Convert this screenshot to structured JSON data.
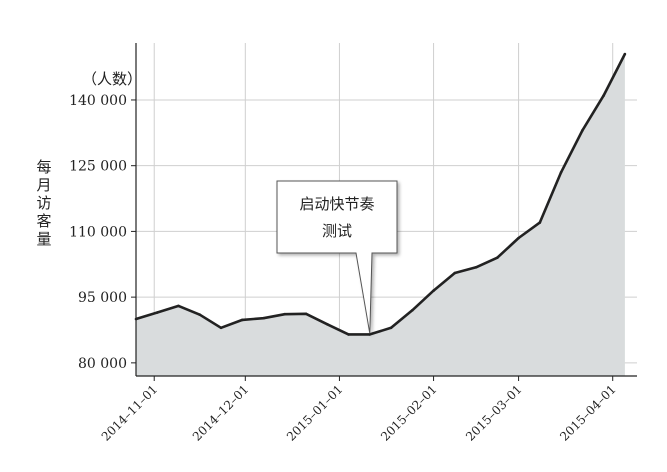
{
  "chart_data": {
    "type": "area",
    "unit_label": "（人数）",
    "ylabel": "每月访客量",
    "y_ticks": [
      80000,
      95000,
      110000,
      125000,
      140000
    ],
    "y_tick_labels": [
      "80 000",
      "95 000",
      "110 000",
      "125 000",
      "140 000"
    ],
    "ylim": [
      77000,
      153000
    ],
    "xlim": [
      "2014-10-26",
      "2015-04-09"
    ],
    "x_ticks": [
      "2014-11-01",
      "2014-12-01",
      "2015-01-01",
      "2015-02-01",
      "2015-03-01",
      "2015-04-01"
    ],
    "x_tick_labels": [
      "2014–11–01",
      "2014–12–01",
      "2015–01–01",
      "2015–02–01",
      "2015–03–01",
      "2015–04–01"
    ],
    "grid": true,
    "series": [
      {
        "color": "#222222",
        "fill": "#d9dcdd",
        "x": [
          "2014-10-26",
          "2014-11-02",
          "2014-11-09",
          "2014-11-16",
          "2014-11-23",
          "2014-11-30",
          "2014-12-07",
          "2014-12-14",
          "2014-12-21",
          "2014-12-28",
          "2015-01-04",
          "2015-01-11",
          "2015-01-18",
          "2015-01-25",
          "2015-02-01",
          "2015-02-08",
          "2015-02-15",
          "2015-02-22",
          "2015-03-01",
          "2015-03-08",
          "2015-03-15",
          "2015-03-22",
          "2015-03-29",
          "2015-04-05"
        ],
        "values": [
          90000,
          91500,
          93000,
          91000,
          88000,
          89800,
          90200,
          91100,
          91200,
          88800,
          86500,
          86500,
          88000,
          92000,
          96500,
          100500,
          101800,
          104000,
          108500,
          112000,
          123500,
          133000,
          141000,
          150500
        ]
      }
    ],
    "annotations": [
      {
        "text_lines": [
          "启动快节奏",
          "测试"
        ],
        "x": "2015-01-11",
        "y": 86500
      }
    ]
  }
}
